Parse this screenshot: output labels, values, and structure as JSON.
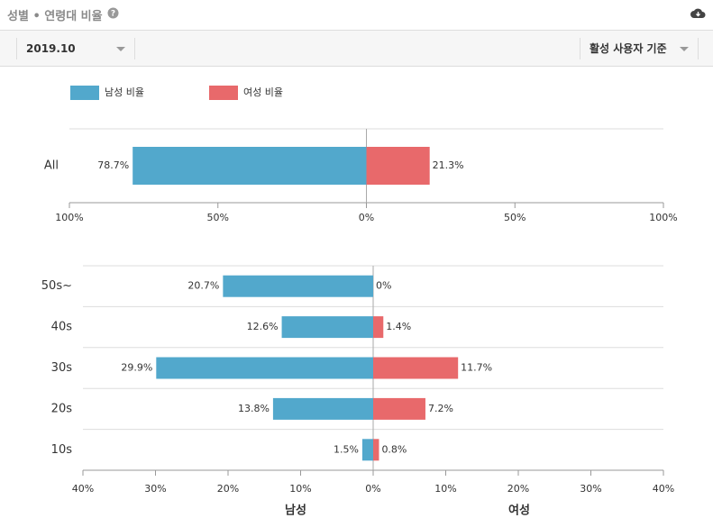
{
  "header": {
    "title": "성별 • 연령대 비율",
    "month": "2019.10",
    "basis": "활성 사용자 기준"
  },
  "chart_data": [
    {
      "type": "diverging-bar",
      "categories": [
        "All"
      ],
      "series": [
        {
          "name": "남성 비율",
          "color": "#52a8cc",
          "values": [
            78.7
          ],
          "value_labels": [
            "78.7%"
          ]
        },
        {
          "name": "여성 비율",
          "color": "#e8696b",
          "values": [
            21.3
          ],
          "value_labels": [
            "21.3%"
          ]
        }
      ],
      "xlim": [
        -100,
        100
      ],
      "xticks": [
        {
          "value": -100,
          "label": "100%"
        },
        {
          "value": -50,
          "label": "50%"
        },
        {
          "value": 0,
          "label": "0%"
        },
        {
          "value": 50,
          "label": "50%"
        },
        {
          "value": 100,
          "label": "100%"
        }
      ],
      "grid": true
    },
    {
      "type": "diverging-bar",
      "categories": [
        "50s~",
        "40s",
        "30s",
        "20s",
        "10s"
      ],
      "series": [
        {
          "color": "#52a8cc",
          "values": [
            20.7,
            12.6,
            29.9,
            13.8,
            1.5
          ],
          "value_labels": [
            "20.7%",
            "12.6%",
            "29.9%",
            "13.8%",
            "1.5%"
          ]
        },
        {
          "color": "#e8696b",
          "values": [
            0,
            1.4,
            11.7,
            7.2,
            0.8
          ],
          "value_labels": [
            "0%",
            "1.4%",
            "11.7%",
            "7.2%",
            "0.8%"
          ]
        }
      ],
      "xlim": [
        -40,
        40
      ],
      "xticks": [
        {
          "value": -40,
          "label": "40%"
        },
        {
          "value": -30,
          "label": "30%"
        },
        {
          "value": -20,
          "label": "20%"
        },
        {
          "value": -10,
          "label": "10%"
        },
        {
          "value": 0,
          "label": "0%"
        },
        {
          "value": 10,
          "label": "10%"
        },
        {
          "value": 20,
          "label": "20%"
        },
        {
          "value": 30,
          "label": "30%"
        },
        {
          "value": 40,
          "label": "40%"
        }
      ],
      "xlabel_left": "남성",
      "xlabel_right": "여성",
      "grid": true
    }
  ]
}
